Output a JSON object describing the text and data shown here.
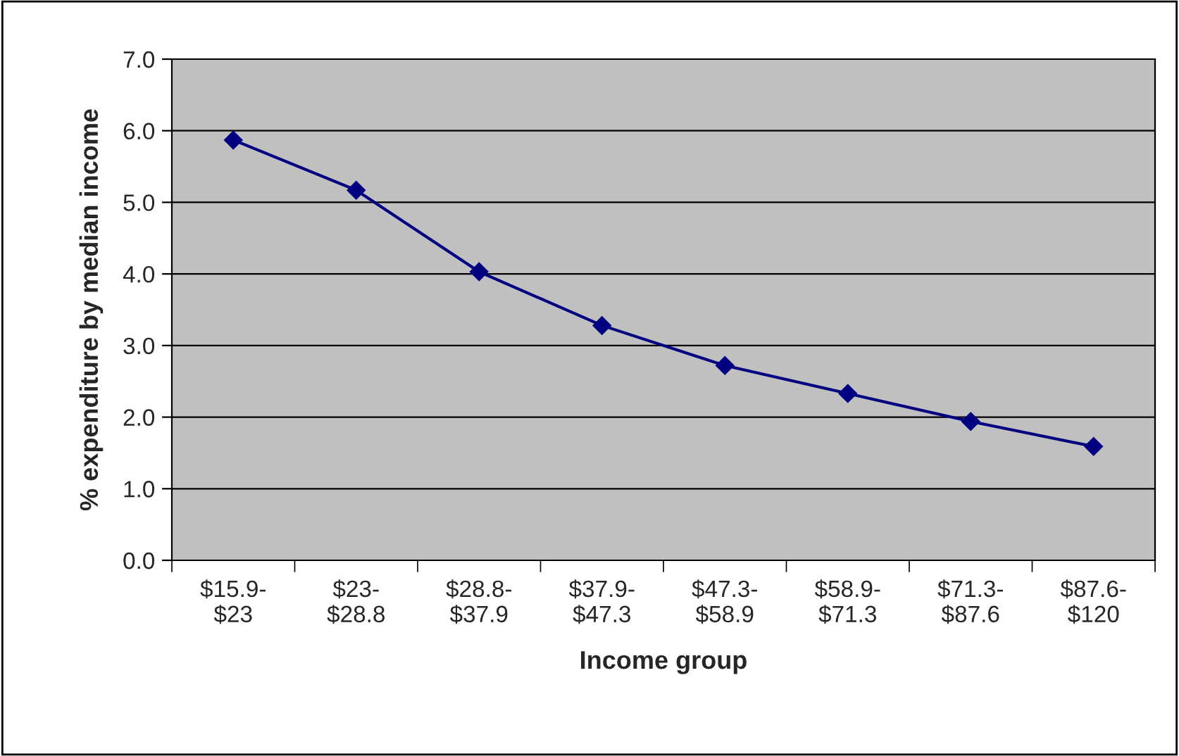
{
  "chart_data": {
    "type": "line",
    "xlabel": "Income group",
    "ylabel": "% expenditure by median income",
    "categories": [
      "$15.9-\n$23",
      "$23-\n$28.8",
      "$28.8-\n$37.9",
      "$37.9-\n$47.3",
      "$47.3-\n$58.9",
      "$58.9-\n$71.3",
      "$71.3-\n$87.6",
      "$87.6-\n$120"
    ],
    "series": [
      {
        "color": "#000080",
        "values": [
          5.87,
          5.17,
          4.03,
          3.28,
          2.72,
          2.33,
          1.94,
          1.59
        ]
      }
    ],
    "ylim": [
      0,
      7
    ],
    "yticks": [
      {
        "value": 0,
        "label": "0.0"
      },
      {
        "value": 1,
        "label": "1.0"
      },
      {
        "value": 2,
        "label": "2.0"
      },
      {
        "value": 3,
        "label": "3.0"
      },
      {
        "value": 4,
        "label": "4.0"
      },
      {
        "value": 5,
        "label": "5.0"
      },
      {
        "value": 6,
        "label": "6.0"
      },
      {
        "value": 7,
        "label": "7.0"
      }
    ],
    "grid": "y",
    "marker": "diamond",
    "line_style": "solid"
  }
}
